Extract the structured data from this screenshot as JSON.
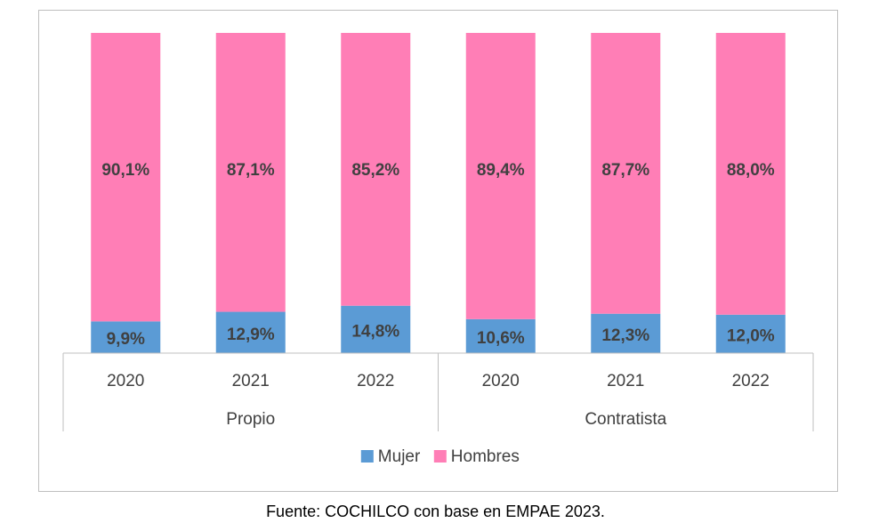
{
  "chart_data": {
    "type": "bar",
    "stacked": true,
    "percent": true,
    "ylim": [
      0,
      100
    ],
    "groups": [
      "Propio",
      "Contratista"
    ],
    "categories": [
      {
        "group": "Propio",
        "year": "2020"
      },
      {
        "group": "Propio",
        "year": "2021"
      },
      {
        "group": "Propio",
        "year": "2022"
      },
      {
        "group": "Contratista",
        "year": "2020"
      },
      {
        "group": "Contratista",
        "year": "2021"
      },
      {
        "group": "Contratista",
        "year": "2022"
      }
    ],
    "series": [
      {
        "name": "Mujer",
        "color": "#5b9bd5",
        "values": [
          9.9,
          12.9,
          14.8,
          10.6,
          12.3,
          12.0
        ],
        "labels": [
          "9,9%",
          "12,9%",
          "14,8%",
          "10,6%",
          "12,3%",
          "12,0%"
        ]
      },
      {
        "name": "Hombres",
        "color": "#ff7eb6",
        "values": [
          90.1,
          87.1,
          85.2,
          89.4,
          87.7,
          88.0
        ],
        "labels": [
          "90,1%",
          "87,1%",
          "85,2%",
          "89,4%",
          "87,7%",
          "88,0%"
        ]
      }
    ],
    "grid": false,
    "legend": "bottom"
  },
  "source_note": "Fuente: COCHILCO con base en EMPAE 2023."
}
